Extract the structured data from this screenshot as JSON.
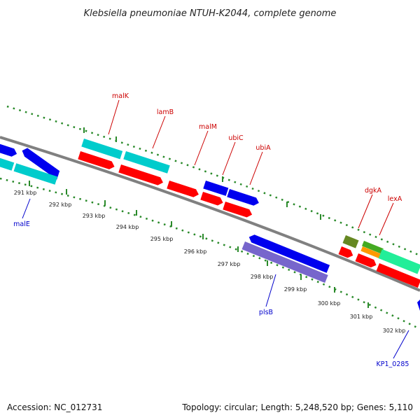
{
  "title": "Klebsiella pneumoniae NTUH-K2044, complete genome",
  "footer": {
    "accession": "Accession: NC_012731",
    "summary": "Topology: circular; Length: 5,248,520 bp; Genes: 5,110"
  },
  "colors": {
    "ruler": "#2a8a2a",
    "backbone": "#808080",
    "red_label": "#cc0000",
    "blue_label": "#0000cc",
    "cds_red": "#ff0000",
    "cds_blue": "#0000ee",
    "cds_cyan": "#00cccc",
    "cds_lavender": "#7766cc",
    "cds_olive": "#668822",
    "cds_green": "#44aa22",
    "cds_orange": "#ff9900",
    "cds_mint": "#22ee99"
  },
  "ticks": [
    "291 kbp",
    "292 kbp",
    "293 kbp",
    "294 kbp",
    "295 kbp",
    "296 kbp",
    "297 kbp",
    "298 kbp",
    "299 kbp",
    "300 kbp",
    "301 kbp",
    "302 kbp"
  ],
  "gene_labels_top": [
    "malK",
    "lamB",
    "malM",
    "ubiC",
    "ubiA",
    "dgkA",
    "lexA"
  ],
  "gene_labels_bottom": [
    "malE",
    "plsB",
    "KP1_0285"
  ]
}
